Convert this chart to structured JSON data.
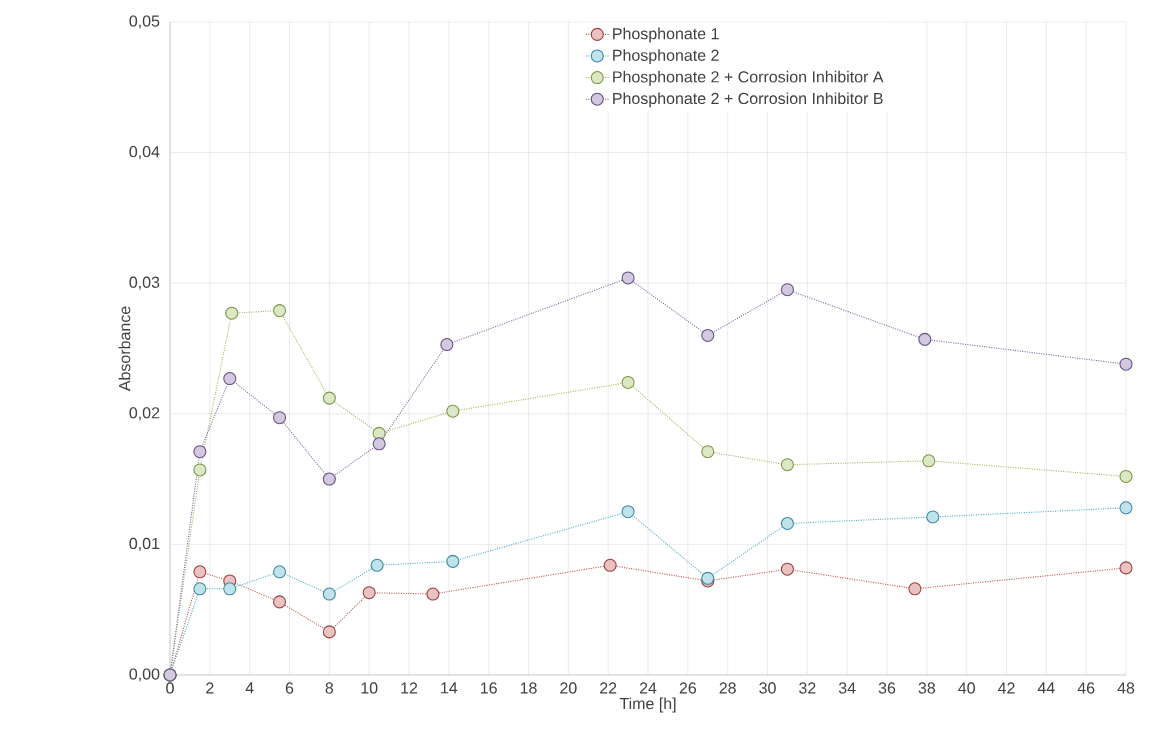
{
  "chart_data": {
    "type": "line",
    "xlabel": "Time [h]",
    "ylabel": "Absorbance",
    "xlim": [
      0,
      48
    ],
    "ylim": [
      0,
      0.05
    ],
    "xticks": [
      0,
      2,
      4,
      6,
      8,
      10,
      12,
      14,
      16,
      18,
      20,
      22,
      24,
      26,
      28,
      30,
      32,
      34,
      36,
      38,
      40,
      42,
      44,
      46,
      48
    ],
    "yticks": [
      {
        "value": 0,
        "label": "0,00"
      },
      {
        "value": 0.01,
        "label": "0,01"
      },
      {
        "value": 0.02,
        "label": "0,02"
      },
      {
        "value": 0.03,
        "label": "0,03"
      },
      {
        "value": 0.04,
        "label": "0,04"
      },
      {
        "value": 0.05,
        "label": "0,05"
      }
    ],
    "grid": true,
    "legend": "top right",
    "marker": "circle",
    "line_style": "dotted",
    "series": [
      {
        "name": "Phosphonate 1",
        "color": "#c0504d",
        "x": [
          0,
          1.5,
          3,
          5.5,
          8,
          10,
          13.2,
          22.1,
          27,
          31,
          37.4,
          48
        ],
        "values": [
          0,
          0.0079,
          0.0072,
          0.0056,
          0.0033,
          0.0063,
          0.0062,
          0.0084,
          0.0072,
          0.0081,
          0.0066,
          0.0082
        ]
      },
      {
        "name": "Phosphonate 2",
        "color": "#4bacc6",
        "x": [
          0,
          1.5,
          3,
          5.5,
          8,
          10.4,
          14.2,
          23,
          27,
          31,
          38.3,
          48
        ],
        "values": [
          0,
          0.0066,
          0.0066,
          0.0079,
          0.0062,
          0.0084,
          0.0087,
          0.0125,
          0.0074,
          0.0116,
          0.0121,
          0.0128
        ]
      },
      {
        "name": "Phosphonate 2 + Corrosion Inhibitor A",
        "color": "#9bbb59",
        "x": [
          0,
          1.5,
          3.1,
          5.5,
          8,
          10.5,
          14.2,
          23,
          27,
          31,
          38.1,
          48
        ],
        "values": [
          0,
          0.0157,
          0.0277,
          0.0279,
          0.0212,
          0.0185,
          0.0202,
          0.0224,
          0.0171,
          0.0161,
          0.0164,
          0.0152
        ]
      },
      {
        "name": "Phosphonate 2 + Corrosion Inhibitor B",
        "color": "#8064a2",
        "x": [
          0,
          1.5,
          3,
          5.5,
          8,
          10.5,
          13.9,
          23,
          27,
          31,
          37.9,
          48
        ],
        "values": [
          0,
          0.0171,
          0.0227,
          0.0197,
          0.015,
          0.0177,
          0.0253,
          0.0304,
          0.026,
          0.0295,
          0.0257,
          0.0238
        ]
      }
    ]
  }
}
